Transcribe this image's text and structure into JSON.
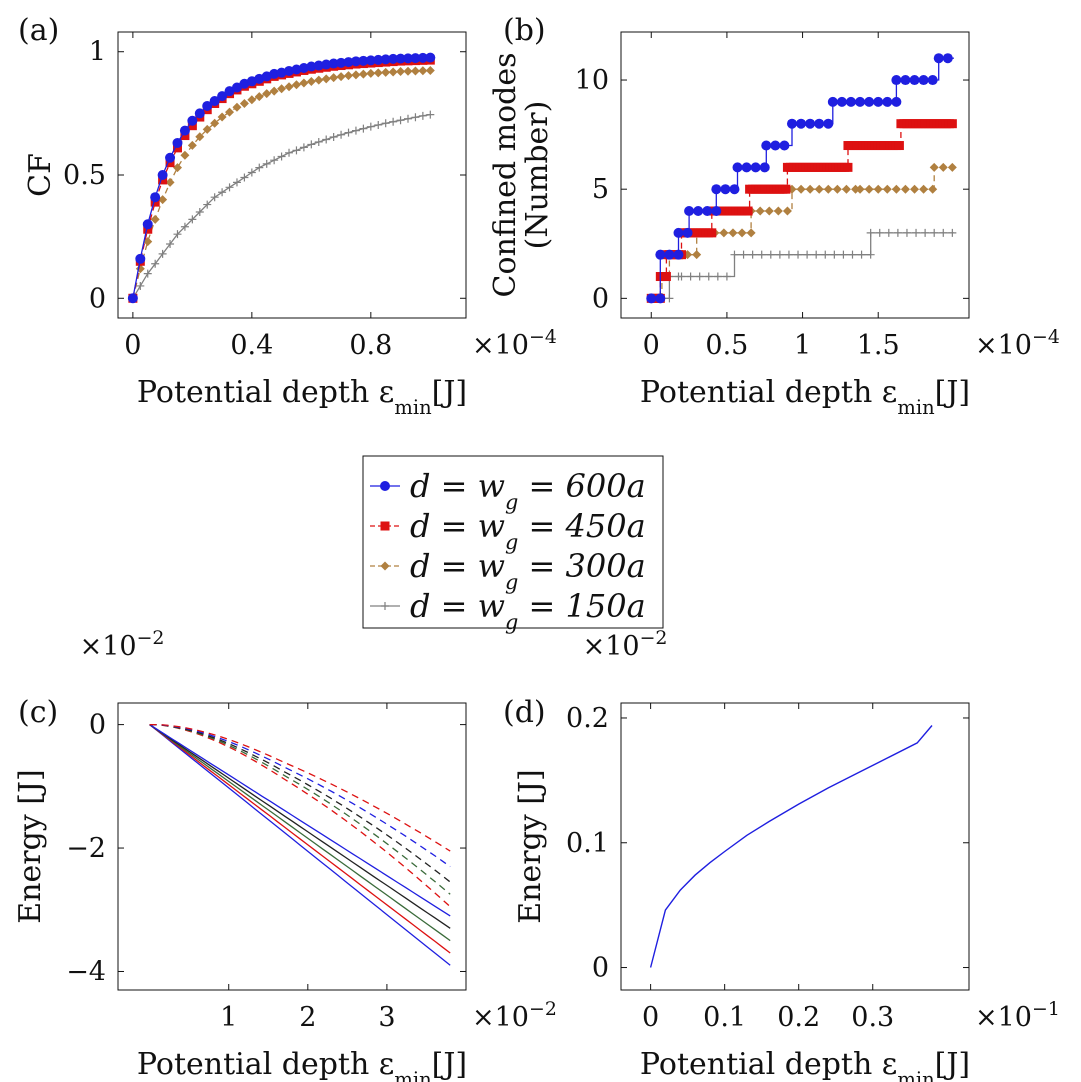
{
  "colors": {
    "s600": "#1f1fe0",
    "s450": "#dd1111",
    "s300": "#b08040",
    "s150": "#808080",
    "black": "#222222",
    "green": "#3a6b3a"
  },
  "legend": {
    "entries": [
      {
        "label": "d = w",
        "sub": "g",
        "rest": " = 600a",
        "series": "s600",
        "marker": "circle",
        "dash": false
      },
      {
        "label": "d = w",
        "sub": "g",
        "rest": " = 450a",
        "series": "s450",
        "marker": "square",
        "dash": true
      },
      {
        "label": "d = w",
        "sub": "g",
        "rest": " = 300a",
        "series": "s300",
        "marker": "diamond",
        "dash": true
      },
      {
        "label": "d = w",
        "sub": "g",
        "rest": " = 150a",
        "series": "s150",
        "marker": "plus",
        "dash": false
      }
    ]
  },
  "chart_data": [
    {
      "panel": "(a)",
      "type": "line",
      "xlabel": "Potential depth ε",
      "xlabel_sub": "min",
      "xlabel_tail": "[J]",
      "ylabel": "CF",
      "x_multiplier": "×10",
      "x_multiplier_exp": "−4",
      "xlim": [
        -0.05,
        1.12
      ],
      "ylim": [
        -0.08,
        1.08
      ],
      "xticks": [
        0,
        0.4,
        0.8
      ],
      "xtick_labels": [
        "0",
        "0.4",
        "0.8"
      ],
      "yticks": [
        0,
        0.5,
        1
      ],
      "ytick_labels": [
        "0",
        "0.5",
        "1"
      ],
      "x": [
        0,
        0.025,
        0.05,
        0.075,
        0.1,
        0.125,
        0.15,
        0.175,
        0.2,
        0.225,
        0.25,
        0.275,
        0.3,
        0.325,
        0.35,
        0.375,
        0.4,
        0.425,
        0.45,
        0.475,
        0.5,
        0.525,
        0.55,
        0.575,
        0.6,
        0.625,
        0.65,
        0.675,
        0.7,
        0.725,
        0.75,
        0.775,
        0.8,
        0.825,
        0.85,
        0.875,
        0.9,
        0.925,
        0.95,
        0.975,
        1.0
      ],
      "series": [
        {
          "name": "d = w_g = 600a",
          "key": "s600",
          "values": [
            0,
            0.16,
            0.3,
            0.41,
            0.5,
            0.57,
            0.63,
            0.68,
            0.72,
            0.75,
            0.78,
            0.8,
            0.82,
            0.84,
            0.855,
            0.87,
            0.88,
            0.89,
            0.9,
            0.91,
            0.915,
            0.922,
            0.928,
            0.934,
            0.94,
            0.944,
            0.948,
            0.952,
            0.955,
            0.958,
            0.961,
            0.963,
            0.965,
            0.967,
            0.969,
            0.971,
            0.972,
            0.973,
            0.974,
            0.975,
            0.976
          ]
        },
        {
          "name": "d = w_g = 450a",
          "key": "s450",
          "values": [
            0,
            0.15,
            0.28,
            0.39,
            0.48,
            0.55,
            0.61,
            0.66,
            0.7,
            0.735,
            0.765,
            0.79,
            0.81,
            0.83,
            0.845,
            0.86,
            0.87,
            0.88,
            0.89,
            0.9,
            0.906,
            0.912,
            0.918,
            0.924,
            0.929,
            0.933,
            0.937,
            0.941,
            0.944,
            0.947,
            0.95,
            0.952,
            0.954,
            0.956,
            0.958,
            0.96,
            0.962,
            0.963,
            0.964,
            0.965,
            0.966
          ]
        },
        {
          "name": "d = w_g = 300a",
          "key": "s300",
          "values": [
            0,
            0.12,
            0.23,
            0.32,
            0.4,
            0.47,
            0.53,
            0.58,
            0.62,
            0.655,
            0.685,
            0.71,
            0.735,
            0.755,
            0.775,
            0.79,
            0.805,
            0.818,
            0.83,
            0.84,
            0.85,
            0.858,
            0.866,
            0.873,
            0.879,
            0.885,
            0.89,
            0.895,
            0.899,
            0.903,
            0.906,
            0.909,
            0.912,
            0.914,
            0.916,
            0.918,
            0.92,
            0.921,
            0.922,
            0.923,
            0.924
          ]
        },
        {
          "name": "d = w_g = 150a",
          "key": "s150",
          "values": [
            0,
            0.05,
            0.1,
            0.14,
            0.18,
            0.22,
            0.26,
            0.29,
            0.32,
            0.35,
            0.38,
            0.41,
            0.43,
            0.45,
            0.47,
            0.49,
            0.51,
            0.53,
            0.545,
            0.56,
            0.575,
            0.59,
            0.6,
            0.612,
            0.624,
            0.634,
            0.644,
            0.654,
            0.663,
            0.672,
            0.68,
            0.688,
            0.696,
            0.703,
            0.71,
            0.716,
            0.722,
            0.728,
            0.734,
            0.74,
            0.745
          ]
        }
      ]
    },
    {
      "panel": "(b)",
      "type": "line",
      "step": true,
      "xlabel": "Potential depth ε",
      "xlabel_sub": "min",
      "xlabel_tail": "[J]",
      "ylabel": "Confined modes",
      "ylabel2": "(Number)",
      "x_multiplier": "×10",
      "x_multiplier_exp": "−4",
      "xlim": [
        -0.2,
        2.1
      ],
      "ylim": [
        -0.9,
        12.2
      ],
      "xticks": [
        0,
        0.5,
        1,
        1.5
      ],
      "xtick_labels": [
        "0",
        "0.5",
        "1",
        "1.5"
      ],
      "yticks": [
        0,
        5,
        10
      ],
      "ytick_labels": [
        "0",
        "5",
        "10"
      ],
      "series": [
        {
          "name": "d = w_g = 600a",
          "key": "s600",
          "steps": [
            [
              0,
              0.06,
              0
            ],
            [
              0.06,
              0.18,
              2
            ],
            [
              0.18,
              0.25,
              3
            ],
            [
              0.25,
              0.43,
              4
            ],
            [
              0.43,
              0.57,
              5
            ],
            [
              0.57,
              0.76,
              6
            ],
            [
              0.76,
              0.93,
              7
            ],
            [
              0.93,
              1.2,
              8
            ],
            [
              1.2,
              1.62,
              9
            ],
            [
              1.62,
              1.9,
              10
            ],
            [
              1.9,
              2.0,
              11
            ]
          ],
          "dx": 0.06
        },
        {
          "name": "d = w_g = 450a",
          "key": "s450",
          "steps": [
            [
              0,
              0.06,
              0
            ],
            [
              0.06,
              0.1,
              1
            ],
            [
              0.1,
              0.2,
              2
            ],
            [
              0.2,
              0.4,
              3
            ],
            [
              0.4,
              0.65,
              4
            ],
            [
              0.65,
              0.9,
              5
            ],
            [
              0.9,
              1.3,
              6
            ],
            [
              1.3,
              1.65,
              7
            ],
            [
              1.65,
              2.0,
              8
            ]
          ],
          "dx": 0.02
        },
        {
          "name": "d = w_g = 300a",
          "key": "s300",
          "steps": [
            [
              0,
              0.07,
              0
            ],
            [
              0.07,
              0.12,
              1
            ],
            [
              0.12,
              0.3,
              2
            ],
            [
              0.3,
              0.66,
              3
            ],
            [
              0.66,
              0.93,
              4
            ],
            [
              0.93,
              1.38,
              5
            ],
            [
              1.38,
              1.87,
              5
            ],
            [
              1.87,
              2.0,
              6
            ]
          ],
          "dx": 0.06
        },
        {
          "name": "d = w_g = 150a",
          "key": "s150",
          "steps": [
            [
              0,
              0.12,
              0
            ],
            [
              0.12,
              0.2,
              1
            ],
            [
              0.2,
              0.55,
              1
            ],
            [
              0.55,
              1.45,
              2
            ],
            [
              1.45,
              2.0,
              3
            ]
          ],
          "dx": 0.06
        }
      ]
    },
    {
      "panel": "(c)",
      "type": "line",
      "xlabel": "Potential depth ε",
      "xlabel_sub": "min",
      "xlabel_tail": "[J]",
      "ylabel": "Energy [J]",
      "x_multiplier": "×10",
      "x_multiplier_exp": "−2",
      "y_multiplier": "×10",
      "y_multiplier_exp": "−2",
      "xlim": [
        -0.4,
        4.0
      ],
      "ylim": [
        -4.3,
        0.35
      ],
      "xticks": [
        1,
        2,
        3
      ],
      "xtick_labels": [
        "1",
        "2",
        "3"
      ],
      "yticks": [
        0,
        -2,
        -4
      ],
      "ytick_labels": [
        "0",
        "−2",
        "−4"
      ],
      "solid": [
        {
          "key": "s600",
          "end": -3.9
        },
        {
          "key": "s450",
          "end": -3.7
        },
        {
          "key": "green",
          "end": -3.5
        },
        {
          "key": "black",
          "end": -3.3
        },
        {
          "key": "s600",
          "end": -3.1
        }
      ],
      "dashed": [
        {
          "key": "s450",
          "peak": 0.05,
          "end": -2.95
        },
        {
          "key": "green",
          "peak": 0.05,
          "end": -2.75
        },
        {
          "key": "black",
          "peak": 0.05,
          "end": -2.55
        },
        {
          "key": "s600",
          "peak": 0.05,
          "end": -2.3
        },
        {
          "key": "s450",
          "peak": 0.05,
          "end": -2.05
        }
      ],
      "x_end": 3.8
    },
    {
      "panel": "(d)",
      "type": "line",
      "xlabel": "Potential depth ε",
      "xlabel_sub": "min",
      "xlabel_tail": "[J]",
      "ylabel": "Energy [J]",
      "x_multiplier": "×10",
      "x_multiplier_exp": "−1",
      "y_multiplier": "×10",
      "y_multiplier_exp": "−2",
      "xlim": [
        -0.04,
        0.43
      ],
      "ylim": [
        -0.018,
        0.212
      ],
      "xticks": [
        0,
        0.1,
        0.2,
        0.3
      ],
      "xtick_labels": [
        "0",
        "0.1",
        "0.2",
        "0.3"
      ],
      "yticks": [
        0,
        0.1,
        0.2
      ],
      "ytick_labels": [
        "0",
        "0.1",
        "0.2"
      ],
      "series": [
        {
          "key": "s600",
          "x": [
            0,
            0.02,
            0.04,
            0.06,
            0.08,
            0.1,
            0.13,
            0.16,
            0.2,
            0.24,
            0.28,
            0.32,
            0.36,
            0.38
          ],
          "values": [
            0,
            0.046,
            0.062,
            0.074,
            0.084,
            0.093,
            0.106,
            0.117,
            0.131,
            0.144,
            0.156,
            0.168,
            0.18,
            0.194
          ]
        }
      ]
    }
  ]
}
